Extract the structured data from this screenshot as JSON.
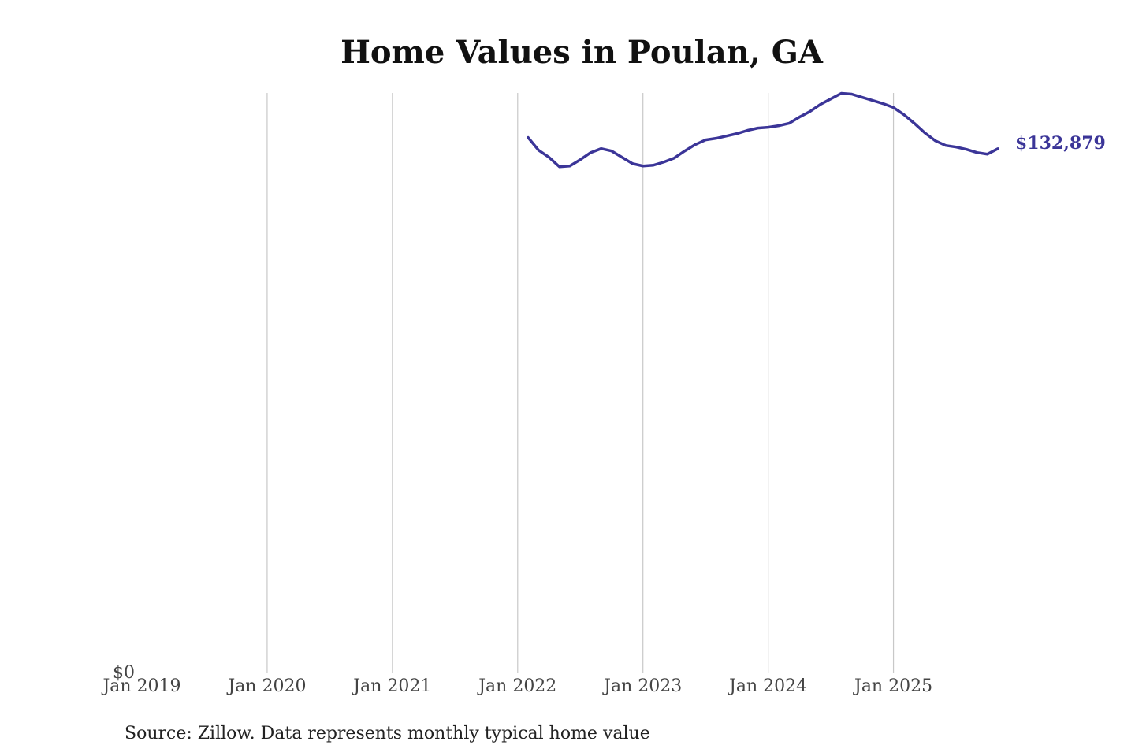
{
  "chart_data": {
    "type": "line",
    "title": "Home Values in Poulan, GA",
    "source": "Source: Zillow. Data represents monthly typical home value",
    "x": [
      "2022-02",
      "2022-03",
      "2022-04",
      "2022-05",
      "2022-06",
      "2022-07",
      "2022-08",
      "2022-09",
      "2022-10",
      "2022-11",
      "2022-12",
      "2023-01",
      "2023-02",
      "2023-03",
      "2023-04",
      "2023-05",
      "2023-06",
      "2023-07",
      "2023-08",
      "2023-09",
      "2023-10",
      "2023-11",
      "2023-12",
      "2024-01",
      "2024-02",
      "2024-03",
      "2024-04",
      "2024-05",
      "2024-06",
      "2024-07",
      "2024-08",
      "2024-09",
      "2024-10",
      "2024-11",
      "2024-12",
      "2025-01",
      "2025-02",
      "2025-03",
      "2025-04",
      "2025-05",
      "2025-06",
      "2025-07",
      "2025-08",
      "2025-09",
      "2025-10",
      "2025-11"
    ],
    "series": [
      {
        "name": "Poulan, GA",
        "color": "#3b3598",
        "values": [
          135700,
          132500,
          130700,
          128300,
          128500,
          130100,
          131900,
          132900,
          132300,
          130700,
          129100,
          128500,
          128700,
          129500,
          130500,
          132300,
          133900,
          135100,
          135500,
          136100,
          136700,
          137500,
          138100,
          138300,
          138700,
          139300,
          140900,
          142300,
          144100,
          145500,
          146900,
          146700,
          145900,
          145100,
          144300,
          143300,
          141500,
          139300,
          136900,
          134900,
          133700,
          133300,
          132700,
          131900,
          131500,
          132879
        ],
        "value_labels": [
          null,
          null,
          null,
          null,
          null,
          null,
          null,
          null,
          null,
          null,
          null,
          null,
          null,
          null,
          null,
          null,
          null,
          null,
          null,
          null,
          null,
          null,
          null,
          null,
          null,
          null,
          null,
          null,
          null,
          null,
          null,
          null,
          null,
          null,
          null,
          null,
          null,
          null,
          null,
          null,
          null,
          null,
          null,
          null,
          null,
          "$132,879"
        ]
      }
    ],
    "xlim": [
      "2019-01",
      "2025-11"
    ],
    "xticks": [
      {
        "value": "2019-01",
        "label": "Jan 2019"
      },
      {
        "value": "2020-01",
        "label": "Jan 2020"
      },
      {
        "value": "2021-01",
        "label": "Jan 2021"
      },
      {
        "value": "2022-01",
        "label": "Jan 2022"
      },
      {
        "value": "2023-01",
        "label": "Jan 2023"
      },
      {
        "value": "2024-01",
        "label": "Jan 2024"
      },
      {
        "value": "2025-01",
        "label": "Jan 2025"
      }
    ],
    "ylim": [
      0,
      147000
    ],
    "yticks": [
      {
        "value": 0,
        "label": "$0"
      }
    ],
    "grid": true
  }
}
